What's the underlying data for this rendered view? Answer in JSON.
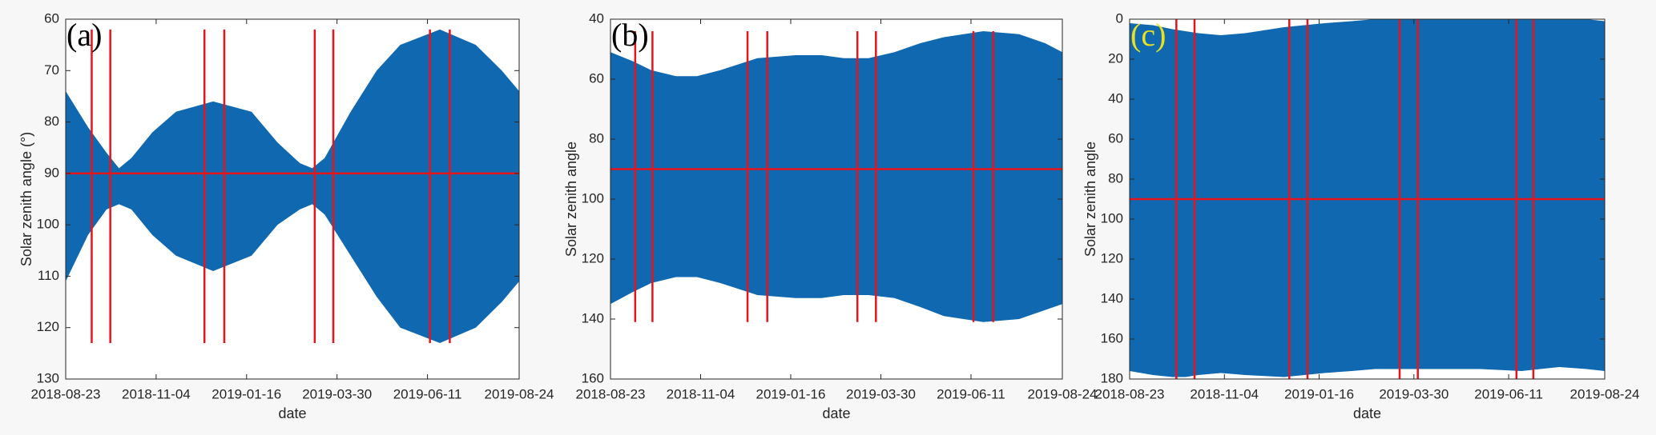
{
  "chart_data": [
    {
      "type": "band",
      "panel_label": "(a)",
      "panel_label_color": "#000000",
      "ylabel": "Solar zenith angle (°)",
      "xlabel": "date",
      "x": [
        "2018-08-23",
        "2018-09-10",
        "2018-09-25",
        "2018-10-05",
        "2018-10-15",
        "2018-11-01",
        "2018-11-20",
        "2018-12-20",
        "2019-01-20",
        "2019-02-10",
        "2019-02-28",
        "2019-03-10",
        "2019-03-20",
        "2019-04-10",
        "2019-05-01",
        "2019-05-20",
        "2019-06-21",
        "2019-07-20",
        "2019-08-10",
        "2019-08-24"
      ],
      "series": [
        {
          "color": "#1069b0",
          "values": [
            74,
            81,
            86,
            89,
            87,
            82,
            78,
            76,
            78,
            84,
            88,
            89,
            87,
            78,
            70,
            65,
            62,
            65,
            70,
            74
          ]
        },
        {
          "color": "#1069b0",
          "values": [
            111,
            102,
            97,
            96,
            97,
            102,
            106,
            109,
            106,
            100,
            97,
            96,
            98,
            106,
            114,
            120,
            123,
            120,
            115,
            111
          ]
        }
      ],
      "vlines": [
        "2018-09-13",
        "2018-09-28",
        "2018-12-13",
        "2018-12-29",
        "2019-03-12",
        "2019-03-27",
        "2019-06-13",
        "2019-06-29"
      ],
      "vline_range": [
        62,
        123
      ],
      "hline": 90,
      "line_color": "#e8141c",
      "xlim": [
        "2018-08-23",
        "2019-08-24"
      ],
      "xticks": [
        "2018-08-23",
        "2018-11-04",
        "2019-01-16",
        "2019-03-30",
        "2019-06-11",
        "2019-08-24"
      ],
      "ylim": [
        60,
        130
      ],
      "yticks": [
        60,
        70,
        80,
        90,
        100,
        110,
        120,
        130
      ],
      "y_reversed": true
    },
    {
      "type": "band",
      "panel_label": "(b)",
      "panel_label_color": "#000000",
      "ylabel": "Solar zenith angle",
      "xlabel": "date",
      "x": [
        "2018-08-23",
        "2018-09-10",
        "2018-09-25",
        "2018-10-05",
        "2018-10-15",
        "2018-11-01",
        "2018-11-20",
        "2018-12-20",
        "2019-01-20",
        "2019-02-10",
        "2019-02-28",
        "2019-03-10",
        "2019-03-20",
        "2019-04-10",
        "2019-05-01",
        "2019-05-20",
        "2019-06-21",
        "2019-07-20",
        "2019-08-10",
        "2019-08-24"
      ],
      "series": [
        {
          "color": "#1069b0",
          "values": [
            51,
            54,
            57,
            58,
            59,
            59,
            57,
            53,
            52,
            52,
            53,
            53,
            53,
            51,
            48,
            46,
            44,
            45,
            48,
            51
          ]
        },
        {
          "color": "#1069b0",
          "values": [
            135,
            131,
            128,
            127,
            126,
            126,
            128,
            132,
            133,
            133,
            132,
            132,
            132,
            133,
            136,
            139,
            141,
            140,
            137,
            135
          ]
        }
      ],
      "vlines": [
        "2018-09-12",
        "2018-09-26",
        "2018-12-12",
        "2018-12-28",
        "2019-03-11",
        "2019-03-26",
        "2019-06-13",
        "2019-06-29"
      ],
      "vline_range": [
        44,
        141
      ],
      "hline": 90,
      "line_color": "#e8141c",
      "xlim": [
        "2018-08-23",
        "2019-08-24"
      ],
      "xticks": [
        "2018-08-23",
        "2018-11-04",
        "2019-01-16",
        "2019-03-30",
        "2019-06-11",
        "2019-08-24"
      ],
      "ylim": [
        40,
        160
      ],
      "yticks": [
        40,
        60,
        80,
        100,
        120,
        140,
        160
      ],
      "y_reversed": true
    },
    {
      "type": "band",
      "panel_label": "(c)",
      "panel_label_color": "#e8e020",
      "ylabel": "Solar zenith angle",
      "xlabel": "date",
      "x": [
        "2018-08-23",
        "2018-09-10",
        "2018-09-25",
        "2018-10-05",
        "2018-10-15",
        "2018-11-01",
        "2018-11-20",
        "2018-12-20",
        "2019-01-20",
        "2019-02-10",
        "2019-02-28",
        "2019-03-10",
        "2019-03-20",
        "2019-04-10",
        "2019-05-01",
        "2019-05-20",
        "2019-06-21",
        "2019-07-20",
        "2019-08-10",
        "2019-08-24"
      ],
      "series": [
        {
          "color": "#1069b0",
          "values": [
            2,
            3,
            5,
            6,
            7,
            8,
            7,
            4,
            2,
            1,
            0,
            0,
            0,
            0,
            0,
            0,
            0,
            0,
            0,
            1
          ]
        },
        {
          "color": "#1069b0",
          "values": [
            176,
            178,
            179,
            179,
            178,
            177,
            178,
            179,
            177,
            176,
            175,
            175,
            175,
            175,
            175,
            175,
            176,
            174,
            175,
            176
          ]
        }
      ],
      "vlines": [
        "2018-09-28",
        "2018-10-12",
        "2018-12-24",
        "2019-01-07",
        "2019-03-19",
        "2019-04-02",
        "2019-06-17",
        "2019-06-30"
      ],
      "vline_range": [
        0,
        180
      ],
      "hline": 90,
      "line_color": "#e8141c",
      "xlim": [
        "2018-08-23",
        "2019-08-24"
      ],
      "xticks": [
        "2018-08-23",
        "2018-11-04",
        "2019-01-16",
        "2019-03-30",
        "2019-06-11",
        "2019-08-24"
      ],
      "ylim": [
        0,
        180
      ],
      "yticks": [
        0,
        20,
        40,
        60,
        80,
        100,
        120,
        140,
        160,
        180
      ],
      "y_reversed": true
    }
  ]
}
